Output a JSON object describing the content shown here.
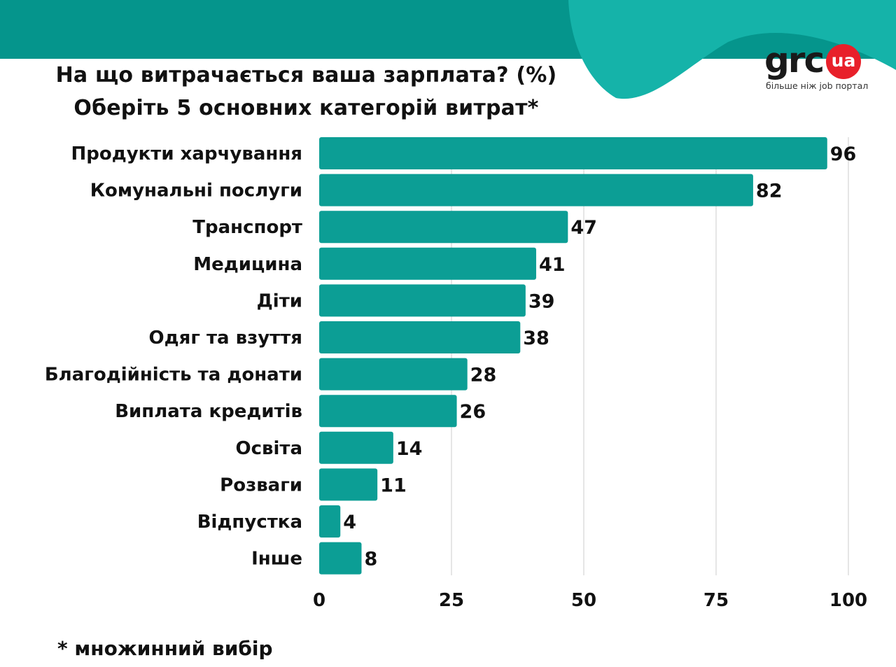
{
  "header": {
    "title_line1": "На що витрачається ваша зарплата? (%)",
    "title_line2": "Оберіть 5 основних категорій витрат*"
  },
  "logo": {
    "text": "grc",
    "badge": "ua",
    "tagline": "більше ніж job портал"
  },
  "colors": {
    "bar": "#0c9e95",
    "banner_dark": "#05958c",
    "banner_light": "#15b3a9",
    "grid": "#d4d4d4",
    "logo_red": "#e8202a"
  },
  "chart_data": {
    "type": "bar",
    "orientation": "horizontal",
    "title": "На що витрачається ваша зарплата? (%)",
    "subtitle": "Оберіть 5 основних категорій витрат*",
    "unit": "%",
    "categories": [
      "Продукти харчування",
      "Комунальні послуги",
      "Транспорт",
      "Медицина",
      "Діти",
      "Одяг та взуття",
      "Благодійність та донати",
      "Виплата кредитів",
      "Освіта",
      "Розваги",
      "Відпустка",
      "Інше"
    ],
    "values": [
      96,
      82,
      47,
      41,
      39,
      38,
      28,
      26,
      14,
      11,
      4,
      8
    ],
    "xlim": [
      0,
      100
    ],
    "xticks": [
      0,
      25,
      50,
      75,
      100
    ],
    "grid": true,
    "data_labels": true
  },
  "footnote": "* множинний вибір"
}
